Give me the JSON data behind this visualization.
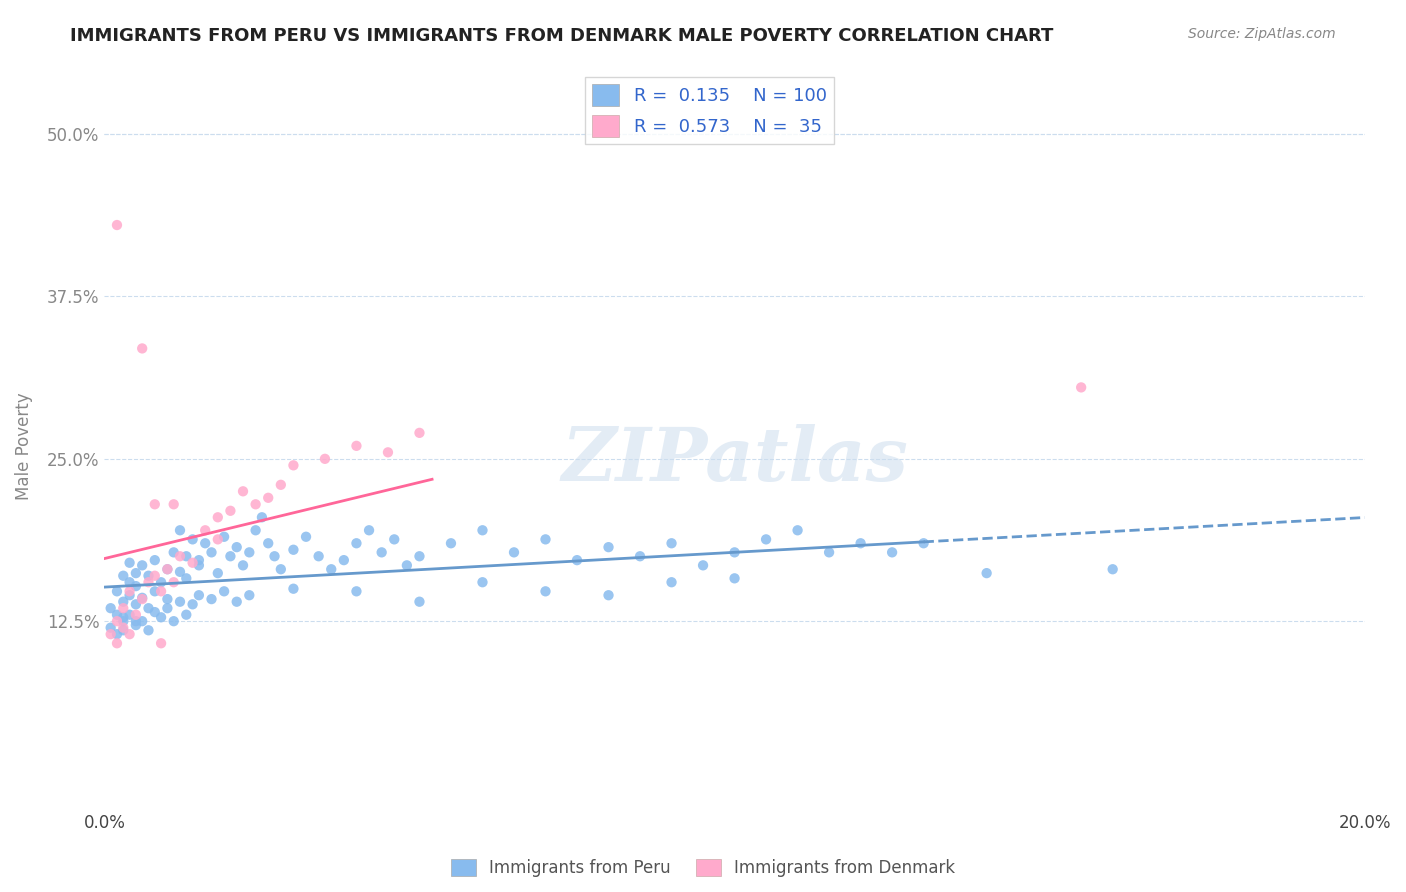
{
  "title": "IMMIGRANTS FROM PERU VS IMMIGRANTS FROM DENMARK MALE POVERTY CORRELATION CHART",
  "source": "Source: ZipAtlas.com",
  "xlabel_peru": "Immigrants from Peru",
  "xlabel_denmark": "Immigrants from Denmark",
  "ylabel": "Male Poverty",
  "watermark": "ZIPatlas",
  "peru_R": 0.135,
  "peru_N": 100,
  "denmark_R": 0.573,
  "denmark_N": 35,
  "xlim": [
    0.0,
    0.2
  ],
  "ylim": [
    -0.02,
    0.54
  ],
  "yticks": [
    0.125,
    0.25,
    0.375,
    0.5
  ],
  "ytick_labels": [
    "12.5%",
    "25.0%",
    "37.5%",
    "50.0%"
  ],
  "peru_color": "#88BBEE",
  "denmark_color": "#FFAACC",
  "peru_line_color": "#6699CC",
  "denmark_line_color": "#FF6699",
  "background_color": "#FFFFFF",
  "grid_color": "#CCDDEE",
  "peru_scatter_x": [
    0.001,
    0.002,
    0.002,
    0.003,
    0.003,
    0.003,
    0.004,
    0.004,
    0.004,
    0.005,
    0.005,
    0.005,
    0.005,
    0.006,
    0.006,
    0.007,
    0.007,
    0.008,
    0.008,
    0.009,
    0.01,
    0.01,
    0.011,
    0.012,
    0.012,
    0.013,
    0.013,
    0.014,
    0.015,
    0.015,
    0.016,
    0.017,
    0.018,
    0.019,
    0.02,
    0.021,
    0.022,
    0.023,
    0.024,
    0.025,
    0.026,
    0.027,
    0.028,
    0.03,
    0.032,
    0.034,
    0.036,
    0.038,
    0.04,
    0.042,
    0.044,
    0.046,
    0.048,
    0.05,
    0.055,
    0.06,
    0.065,
    0.07,
    0.075,
    0.08,
    0.085,
    0.09,
    0.095,
    0.1,
    0.105,
    0.11,
    0.115,
    0.12,
    0.125,
    0.13,
    0.001,
    0.002,
    0.003,
    0.003,
    0.004,
    0.005,
    0.006,
    0.007,
    0.008,
    0.009,
    0.01,
    0.011,
    0.012,
    0.013,
    0.014,
    0.015,
    0.017,
    0.019,
    0.021,
    0.023,
    0.03,
    0.04,
    0.05,
    0.06,
    0.07,
    0.08,
    0.09,
    0.1,
    0.14,
    0.16
  ],
  "peru_scatter_y": [
    0.135,
    0.148,
    0.13,
    0.16,
    0.14,
    0.125,
    0.155,
    0.145,
    0.17,
    0.162,
    0.138,
    0.125,
    0.152,
    0.168,
    0.143,
    0.16,
    0.135,
    0.172,
    0.148,
    0.155,
    0.165,
    0.142,
    0.178,
    0.195,
    0.163,
    0.175,
    0.158,
    0.188,
    0.172,
    0.168,
    0.185,
    0.178,
    0.162,
    0.19,
    0.175,
    0.182,
    0.168,
    0.178,
    0.195,
    0.205,
    0.185,
    0.175,
    0.165,
    0.18,
    0.19,
    0.175,
    0.165,
    0.172,
    0.185,
    0.195,
    0.178,
    0.188,
    0.168,
    0.175,
    0.185,
    0.195,
    0.178,
    0.188,
    0.172,
    0.182,
    0.175,
    0.185,
    0.168,
    0.178,
    0.188,
    0.195,
    0.178,
    0.185,
    0.178,
    0.185,
    0.12,
    0.115,
    0.128,
    0.118,
    0.13,
    0.122,
    0.125,
    0.118,
    0.132,
    0.128,
    0.135,
    0.125,
    0.14,
    0.13,
    0.138,
    0.145,
    0.142,
    0.148,
    0.14,
    0.145,
    0.15,
    0.148,
    0.14,
    0.155,
    0.148,
    0.145,
    0.155,
    0.158,
    0.162,
    0.165
  ],
  "denmark_scatter_x": [
    0.001,
    0.002,
    0.003,
    0.004,
    0.005,
    0.006,
    0.007,
    0.008,
    0.009,
    0.01,
    0.011,
    0.012,
    0.014,
    0.016,
    0.018,
    0.02,
    0.022,
    0.024,
    0.026,
    0.028,
    0.03,
    0.035,
    0.04,
    0.045,
    0.05,
    0.002,
    0.003,
    0.004,
    0.006,
    0.008,
    0.009,
    0.011,
    0.018,
    0.155,
    0.002
  ],
  "denmark_scatter_y": [
    0.115,
    0.125,
    0.135,
    0.148,
    0.13,
    0.142,
    0.155,
    0.16,
    0.148,
    0.165,
    0.155,
    0.175,
    0.17,
    0.195,
    0.188,
    0.21,
    0.225,
    0.215,
    0.22,
    0.23,
    0.245,
    0.25,
    0.26,
    0.255,
    0.27,
    0.108,
    0.12,
    0.115,
    0.335,
    0.215,
    0.108,
    0.215,
    0.205,
    0.305,
    0.43
  ]
}
